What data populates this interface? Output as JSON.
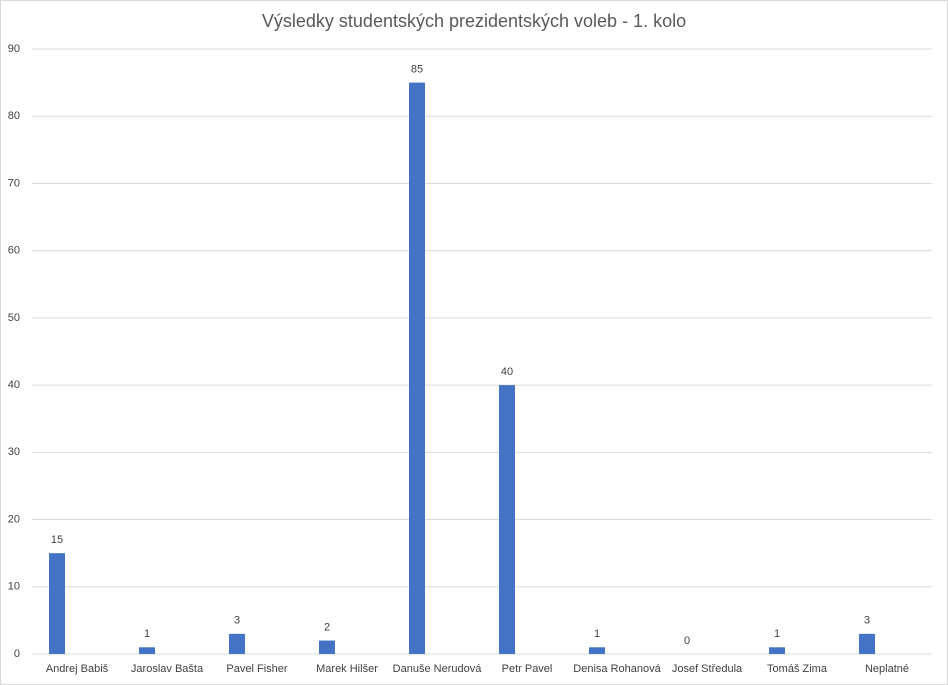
{
  "chart_data": {
    "type": "bar",
    "title": "Výsledky studentských prezidentských voleb - 1. kolo",
    "categories": [
      "Andrej Babiš",
      "Jaroslav Bašta",
      "Pavel Fisher",
      "Marek Hilšer",
      "Danuše Nerudová",
      "Petr Pavel",
      "Denisa Rohanová",
      "Josef Středula",
      "Tomáš Zima",
      "Neplatné"
    ],
    "values": [
      15,
      1,
      3,
      2,
      85,
      40,
      1,
      0,
      1,
      3
    ],
    "color": "#4472c4",
    "ylim": [
      0,
      90
    ],
    "yticks": [
      0,
      10,
      20,
      30,
      40,
      50,
      60,
      70,
      80,
      90
    ],
    "grid": true,
    "data_labels": true
  }
}
